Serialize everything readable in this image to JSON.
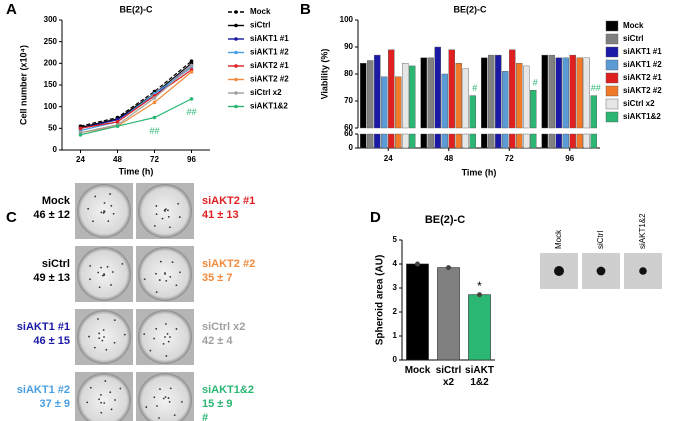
{
  "panel_labels": [
    "A",
    "B",
    "C",
    "D"
  ],
  "chart_data": [
    {
      "type": "line",
      "title": "BE(2)-C",
      "x_label": "Time (h)",
      "y_label": "Cell number (x10⁴)",
      "categories": [
        "24",
        "48",
        "72",
        "96"
      ],
      "ylim": [
        0,
        300
      ],
      "yticks": [
        0,
        50,
        100,
        150,
        200,
        250,
        300
      ],
      "series": [
        {
          "name": "Mock",
          "color": "#000000",
          "dash": "dashed",
          "values": [
            55,
            75,
            135,
            205
          ]
        },
        {
          "name": "siCtrl",
          "color": "#000000",
          "values": [
            52,
            72,
            130,
            200
          ]
        },
        {
          "name": "siAKT1 #1",
          "color": "#1a1aa6",
          "values": [
            50,
            70,
            125,
            195
          ]
        },
        {
          "name": "siAKT1 #2",
          "color": "#4a9fe0",
          "values": [
            45,
            65,
            130,
            190
          ]
        },
        {
          "name": "siAKT2 #1",
          "color": "#e02020",
          "values": [
            50,
            65,
            125,
            185
          ]
        },
        {
          "name": "siAKT2 #2",
          "color": "#f08a3c",
          "values": [
            40,
            55,
            110,
            180
          ]
        },
        {
          "name": "siCtrl x2",
          "color": "#a0a0a0",
          "values": [
            40,
            58,
            120,
            195
          ]
        },
        {
          "name": "siAKT1&2",
          "color": "#2bb673",
          "values": [
            35,
            55,
            75,
            118
          ]
        }
      ],
      "annotations": [
        {
          "text": "##",
          "category": "72",
          "color": "#2bb673"
        },
        {
          "text": "##",
          "category": "96",
          "color": "#2bb673"
        }
      ]
    },
    {
      "type": "grouped_bar",
      "title": "BE(2)-C",
      "x_label": "Time (h)",
      "y_label": "Viability (%)",
      "categories": [
        "24",
        "48",
        "72",
        "96"
      ],
      "ylim": [
        60,
        100
      ],
      "yticks": [
        60,
        70,
        80,
        90,
        100
      ],
      "break_ylim": [
        0,
        60
      ],
      "break_yticks": [
        0,
        60
      ],
      "series": [
        {
          "name": "Mock",
          "color": "#000000",
          "values": [
            84,
            86,
            86,
            87
          ]
        },
        {
          "name": "siCtrl",
          "color": "#808080",
          "values": [
            85,
            86,
            87,
            87
          ]
        },
        {
          "name": "siAKT1 #1",
          "color": "#1a1aa6",
          "values": [
            87,
            90,
            87,
            86
          ]
        },
        {
          "name": "siAKT1 #2",
          "color": "#5b9bd5",
          "values": [
            79,
            80,
            81,
            86
          ]
        },
        {
          "name": "siAKT2 #1",
          "color": "#e02020",
          "values": [
            89,
            89,
            89,
            87
          ]
        },
        {
          "name": "siAKT2 #2",
          "color": "#f07a2a",
          "values": [
            79,
            84,
            84,
            86
          ]
        },
        {
          "name": "siCtrl x2",
          "color": "#e6e6e6",
          "values": [
            84,
            82,
            83,
            86
          ]
        },
        {
          "name": "siAKT1&2",
          "color": "#2bb673",
          "values": [
            83,
            72,
            74,
            72
          ]
        }
      ],
      "annotations": [
        {
          "text": "#",
          "category": "48",
          "color": "#2bb673"
        },
        {
          "text": "#",
          "category": "72",
          "color": "#2bb673"
        },
        {
          "text": "##",
          "category": "96",
          "color": "#2bb673"
        }
      ]
    },
    {
      "type": "bar",
      "title": "BE(2)-C",
      "y_label": "Spheroid area (AU)",
      "categories": [
        "Mock",
        "siCtrl x2",
        "siAKT 1&2"
      ],
      "values": [
        4.0,
        3.85,
        2.72
      ],
      "colors": [
        "#000000",
        "#808080",
        "#2bb673"
      ],
      "ylim": [
        0,
        5
      ],
      "yticks": [
        0,
        1,
        2,
        3,
        4,
        5
      ],
      "annotations": [
        {
          "text": "*",
          "category": "siAKT 1&2"
        }
      ]
    }
  ],
  "colony_panel": {
    "left": [
      {
        "name": "Mock",
        "stat": "46 ± 12",
        "color": "#000000"
      },
      {
        "name": "siCtrl",
        "stat": "49 ± 13",
        "color": "#000000"
      },
      {
        "name": "siAKT1 #1",
        "stat": "46 ± 15",
        "color": "#1a1aa6"
      },
      {
        "name": "siAKT1 #2",
        "stat": "37 ± 9",
        "color": "#4a9fe0"
      }
    ],
    "right": [
      {
        "name": "siAKT2 #1",
        "stat": "41 ± 13",
        "color": "#e02020"
      },
      {
        "name": "siAKT2 #2",
        "stat": "35 ± 7",
        "color": "#f08a3c"
      },
      {
        "name": "siCtrl x2",
        "stat": "42 ± 4",
        "color": "#a0a0a0"
      },
      {
        "name": "siAKT1&2",
        "stat": "15 ± 9",
        "note": "#",
        "color": "#2bb673"
      }
    ]
  },
  "spheroid_images": {
    "labels": [
      "Mock",
      "siCtrl",
      "siAKT1&2"
    ]
  }
}
